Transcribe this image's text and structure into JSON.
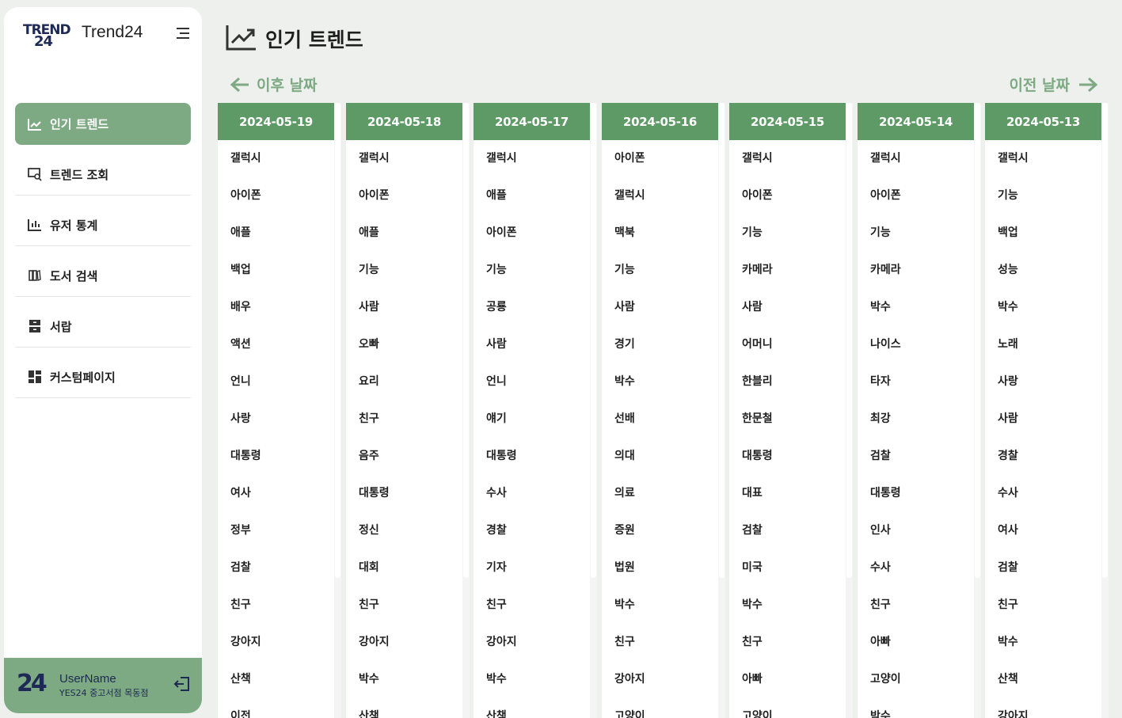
{
  "brand": {
    "logo_line1": "TREND",
    "logo_line2": "24",
    "name": "Trend24"
  },
  "sidebar": {
    "items": [
      {
        "label": "인기 트렌드",
        "icon": "trending-chart-icon",
        "active": true
      },
      {
        "label": "트렌드 조회",
        "icon": "search-screen-icon",
        "active": false
      },
      {
        "label": "유저 통계",
        "icon": "bar-chart-icon",
        "active": false
      },
      {
        "label": "도서 검색",
        "icon": "books-icon",
        "active": false
      },
      {
        "label": "서랍",
        "icon": "drawer-icon",
        "active": false
      },
      {
        "label": "커스텀페이지",
        "icon": "dashboard-icon",
        "active": false
      }
    ]
  },
  "user": {
    "avatar": "24",
    "name": "UserName",
    "store": "YES24 중고서점 목동점"
  },
  "header": {
    "title": "인기 트렌드"
  },
  "pager": {
    "prev_label": "이후 날짜",
    "next_label": "이전 날짜"
  },
  "colors": {
    "accent": "#7da983",
    "header": "#5e9a66",
    "brand": "#1e2a55"
  },
  "columns": [
    {
      "date": "2024-05-19",
      "keywords": [
        "갤럭시",
        "아이폰",
        "애플",
        "백업",
        "배우",
        "액션",
        "언니",
        "사랑",
        "대통령",
        "여사",
        "정부",
        "검찰",
        "친구",
        "강아지",
        "산책",
        "이전"
      ]
    },
    {
      "date": "2024-05-18",
      "keywords": [
        "갤럭시",
        "아이폰",
        "애플",
        "기능",
        "사람",
        "오빠",
        "요리",
        "친구",
        "음주",
        "대통령",
        "정신",
        "대회",
        "친구",
        "강아지",
        "박수",
        "산책"
      ]
    },
    {
      "date": "2024-05-17",
      "keywords": [
        "갤럭시",
        "애플",
        "아이폰",
        "기능",
        "공룡",
        "사람",
        "언니",
        "얘기",
        "대통령",
        "수사",
        "경찰",
        "기자",
        "친구",
        "강아지",
        "박수",
        "산책"
      ]
    },
    {
      "date": "2024-05-16",
      "keywords": [
        "아이폰",
        "갤럭시",
        "맥북",
        "기능",
        "사람",
        "경기",
        "박수",
        "선배",
        "의대",
        "의료",
        "증원",
        "법원",
        "박수",
        "친구",
        "강아지",
        "고양이"
      ]
    },
    {
      "date": "2024-05-15",
      "keywords": [
        "갤럭시",
        "아이폰",
        "기능",
        "카메라",
        "사람",
        "어머니",
        "한블리",
        "한문철",
        "대통령",
        "대표",
        "검찰",
        "미국",
        "박수",
        "친구",
        "아빠",
        "고양이"
      ]
    },
    {
      "date": "2024-05-14",
      "keywords": [
        "갤럭시",
        "아이폰",
        "기능",
        "카메라",
        "박수",
        "나이스",
        "타자",
        "최강",
        "검찰",
        "대통령",
        "인사",
        "수사",
        "친구",
        "아빠",
        "고양이",
        "박수"
      ]
    },
    {
      "date": "2024-05-13",
      "keywords": [
        "갤럭시",
        "기능",
        "백업",
        "성능",
        "박수",
        "노래",
        "사랑",
        "사람",
        "경찰",
        "수사",
        "여사",
        "검찰",
        "친구",
        "박수",
        "산책",
        "강아지"
      ]
    }
  ]
}
